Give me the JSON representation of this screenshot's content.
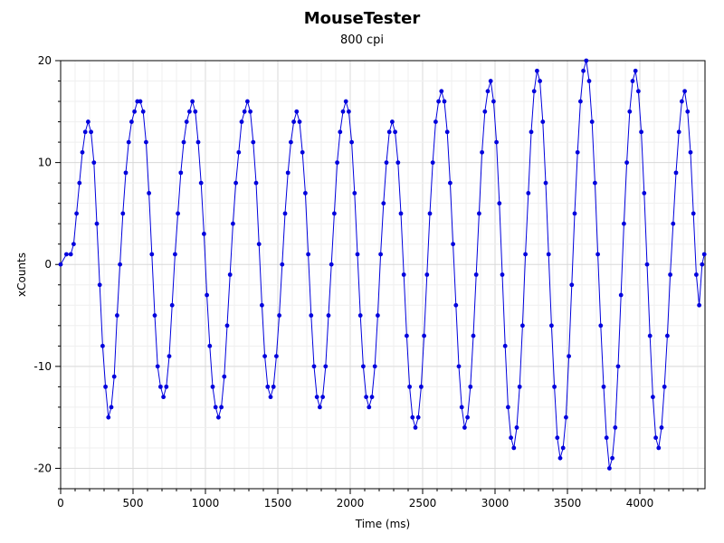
{
  "chart_data": {
    "type": "scatter",
    "title": "MouseTester",
    "subtitle": "800 cpi",
    "xlabel": "Time (ms)",
    "ylabel": "xCounts",
    "xlim": [
      0,
      4450
    ],
    "ylim": [
      -22,
      20
    ],
    "x_ticks": [
      0,
      500,
      1000,
      1500,
      2000,
      2500,
      3000,
      3500,
      4000
    ],
    "y_ticks": [
      -20,
      -10,
      0,
      10,
      20
    ],
    "grid": true,
    "colors": {
      "series": "#0000dd",
      "grid": "#e0e0e0",
      "axis": "#000000"
    },
    "series": [
      {
        "mode": "markers+line",
        "points": [
          [
            0,
            0
          ],
          [
            40,
            1
          ],
          [
            70,
            1
          ],
          [
            90,
            2
          ],
          [
            110,
            5
          ],
          [
            130,
            8
          ],
          [
            150,
            11
          ],
          [
            170,
            13
          ],
          [
            190,
            14
          ],
          [
            210,
            13
          ],
          [
            230,
            10
          ],
          [
            250,
            4
          ],
          [
            270,
            -2
          ],
          [
            290,
            -8
          ],
          [
            310,
            -12
          ],
          [
            330,
            -15
          ],
          [
            350,
            -14
          ],
          [
            370,
            -11
          ],
          [
            390,
            -5
          ],
          [
            410,
            0
          ],
          [
            430,
            5
          ],
          [
            450,
            9
          ],
          [
            470,
            12
          ],
          [
            490,
            14
          ],
          [
            510,
            15
          ],
          [
            530,
            16
          ],
          [
            550,
            16
          ],
          [
            570,
            15
          ],
          [
            590,
            12
          ],
          [
            610,
            7
          ],
          [
            630,
            1
          ],
          [
            650,
            -5
          ],
          [
            670,
            -10
          ],
          [
            690,
            -12
          ],
          [
            710,
            -13
          ],
          [
            730,
            -12
          ],
          [
            750,
            -9
          ],
          [
            770,
            -4
          ],
          [
            790,
            1
          ],
          [
            810,
            5
          ],
          [
            830,
            9
          ],
          [
            850,
            12
          ],
          [
            870,
            14
          ],
          [
            890,
            15
          ],
          [
            910,
            16
          ],
          [
            930,
            15
          ],
          [
            950,
            12
          ],
          [
            970,
            8
          ],
          [
            990,
            3
          ],
          [
            1010,
            -3
          ],
          [
            1030,
            -8
          ],
          [
            1050,
            -12
          ],
          [
            1070,
            -14
          ],
          [
            1090,
            -15
          ],
          [
            1110,
            -14
          ],
          [
            1130,
            -11
          ],
          [
            1150,
            -6
          ],
          [
            1170,
            -1
          ],
          [
            1190,
            4
          ],
          [
            1210,
            8
          ],
          [
            1230,
            11
          ],
          [
            1250,
            14
          ],
          [
            1270,
            15
          ],
          [
            1290,
            16
          ],
          [
            1310,
            15
          ],
          [
            1330,
            12
          ],
          [
            1350,
            8
          ],
          [
            1370,
            2
          ],
          [
            1390,
            -4
          ],
          [
            1410,
            -9
          ],
          [
            1430,
            -12
          ],
          [
            1450,
            -13
          ],
          [
            1470,
            -12
          ],
          [
            1490,
            -9
          ],
          [
            1510,
            -5
          ],
          [
            1530,
            0
          ],
          [
            1550,
            5
          ],
          [
            1570,
            9
          ],
          [
            1590,
            12
          ],
          [
            1610,
            14
          ],
          [
            1630,
            15
          ],
          [
            1650,
            14
          ],
          [
            1670,
            11
          ],
          [
            1690,
            7
          ],
          [
            1710,
            1
          ],
          [
            1730,
            -5
          ],
          [
            1750,
            -10
          ],
          [
            1770,
            -13
          ],
          [
            1790,
            -14
          ],
          [
            1810,
            -13
          ],
          [
            1830,
            -10
          ],
          [
            1850,
            -5
          ],
          [
            1870,
            0
          ],
          [
            1890,
            5
          ],
          [
            1910,
            10
          ],
          [
            1930,
            13
          ],
          [
            1950,
            15
          ],
          [
            1970,
            16
          ],
          [
            1990,
            15
          ],
          [
            2010,
            12
          ],
          [
            2030,
            7
          ],
          [
            2050,
            1
          ],
          [
            2070,
            -5
          ],
          [
            2090,
            -10
          ],
          [
            2110,
            -13
          ],
          [
            2130,
            -14
          ],
          [
            2150,
            -13
          ],
          [
            2170,
            -10
          ],
          [
            2190,
            -5
          ],
          [
            2210,
            1
          ],
          [
            2230,
            6
          ],
          [
            2250,
            10
          ],
          [
            2270,
            13
          ],
          [
            2290,
            14
          ],
          [
            2310,
            13
          ],
          [
            2330,
            10
          ],
          [
            2350,
            5
          ],
          [
            2370,
            -1
          ],
          [
            2390,
            -7
          ],
          [
            2410,
            -12
          ],
          [
            2430,
            -15
          ],
          [
            2450,
            -16
          ],
          [
            2470,
            -15
          ],
          [
            2490,
            -12
          ],
          [
            2510,
            -7
          ],
          [
            2530,
            -1
          ],
          [
            2550,
            5
          ],
          [
            2570,
            10
          ],
          [
            2590,
            14
          ],
          [
            2610,
            16
          ],
          [
            2630,
            17
          ],
          [
            2650,
            16
          ],
          [
            2670,
            13
          ],
          [
            2690,
            8
          ],
          [
            2710,
            2
          ],
          [
            2730,
            -4
          ],
          [
            2750,
            -10
          ],
          [
            2770,
            -14
          ],
          [
            2790,
            -16
          ],
          [
            2810,
            -15
          ],
          [
            2830,
            -12
          ],
          [
            2850,
            -7
          ],
          [
            2870,
            -1
          ],
          [
            2890,
            5
          ],
          [
            2910,
            11
          ],
          [
            2930,
            15
          ],
          [
            2950,
            17
          ],
          [
            2970,
            18
          ],
          [
            2990,
            16
          ],
          [
            3010,
            12
          ],
          [
            3030,
            6
          ],
          [
            3050,
            -1
          ],
          [
            3070,
            -8
          ],
          [
            3090,
            -14
          ],
          [
            3110,
            -17
          ],
          [
            3130,
            -18
          ],
          [
            3150,
            -16
          ],
          [
            3170,
            -12
          ],
          [
            3190,
            -6
          ],
          [
            3210,
            1
          ],
          [
            3230,
            7
          ],
          [
            3250,
            13
          ],
          [
            3270,
            17
          ],
          [
            3290,
            19
          ],
          [
            3310,
            18
          ],
          [
            3330,
            14
          ],
          [
            3350,
            8
          ],
          [
            3370,
            1
          ],
          [
            3390,
            -6
          ],
          [
            3410,
            -12
          ],
          [
            3430,
            -17
          ],
          [
            3450,
            -19
          ],
          [
            3470,
            -18
          ],
          [
            3490,
            -15
          ],
          [
            3510,
            -9
          ],
          [
            3530,
            -2
          ],
          [
            3550,
            5
          ],
          [
            3570,
            11
          ],
          [
            3590,
            16
          ],
          [
            3610,
            19
          ],
          [
            3630,
            20
          ],
          [
            3650,
            18
          ],
          [
            3670,
            14
          ],
          [
            3690,
            8
          ],
          [
            3710,
            1
          ],
          [
            3730,
            -6
          ],
          [
            3750,
            -12
          ],
          [
            3770,
            -17
          ],
          [
            3790,
            -20
          ],
          [
            3810,
            -19
          ],
          [
            3830,
            -16
          ],
          [
            3850,
            -10
          ],
          [
            3870,
            -3
          ],
          [
            3890,
            4
          ],
          [
            3910,
            10
          ],
          [
            3930,
            15
          ],
          [
            3950,
            18
          ],
          [
            3970,
            19
          ],
          [
            3990,
            17
          ],
          [
            4010,
            13
          ],
          [
            4030,
            7
          ],
          [
            4050,
            0
          ],
          [
            4070,
            -7
          ],
          [
            4090,
            -13
          ],
          [
            4110,
            -17
          ],
          [
            4130,
            -18
          ],
          [
            4150,
            -16
          ],
          [
            4170,
            -12
          ],
          [
            4190,
            -7
          ],
          [
            4210,
            -1
          ],
          [
            4230,
            4
          ],
          [
            4250,
            9
          ],
          [
            4270,
            13
          ],
          [
            4290,
            16
          ],
          [
            4310,
            17
          ],
          [
            4330,
            15
          ],
          [
            4350,
            11
          ],
          [
            4370,
            5
          ],
          [
            4390,
            -1
          ],
          [
            4410,
            -4
          ],
          [
            4430,
            0
          ],
          [
            4445,
            1
          ]
        ]
      }
    ]
  }
}
